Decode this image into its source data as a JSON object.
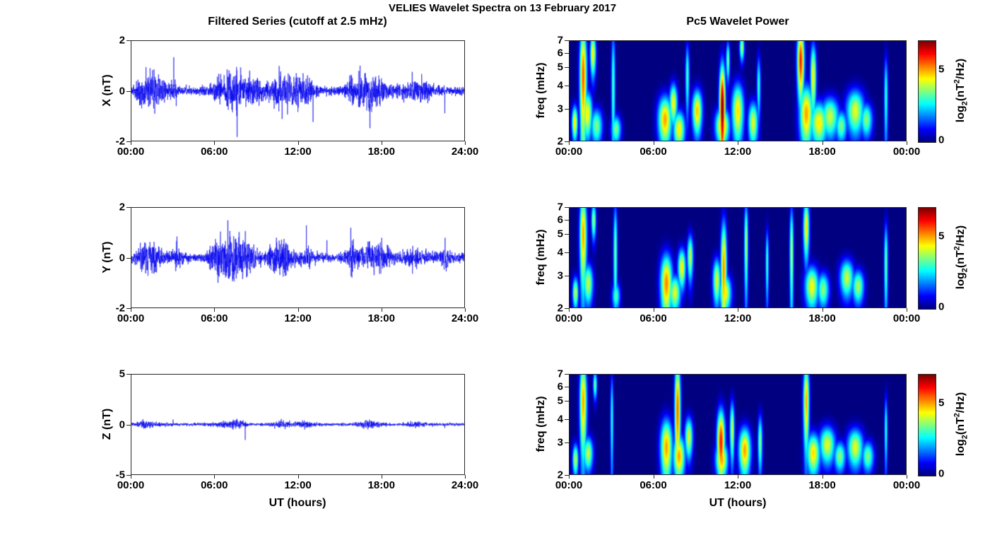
{
  "figure": {
    "title": "VELIES Wavelet Spectra on 13 February 2017",
    "left_title": "Filtered Series (cutoff at 2.5 mHz)",
    "right_title": "Pc5 Wavelet Power",
    "xlabel": "UT (hours)",
    "background_color": "#ffffff",
    "series_color": "#0000ee",
    "spectrogram_background_color": "#00008f"
  },
  "colorbar": {
    "label_pre": "log",
    "label_sub": "2",
    "label_mid": "(nT",
    "label_sup": "2",
    "label_post": "/Hz)",
    "ticks": [
      "0",
      "5"
    ],
    "range_log2": [
      0,
      7
    ]
  },
  "chart_data": [
    {
      "type": "line",
      "name": "X filtered series",
      "title": "Filtered Series (cutoff at 2.5 mHz)",
      "ylabel": "X (nT)",
      "ylim": [
        -2,
        2
      ],
      "yticks": [
        2,
        0,
        -2
      ],
      "x_hours": [
        0,
        24
      ],
      "xtick_labels": [
        "00:00",
        "06:00",
        "12:00",
        "18:00",
        "24:00"
      ],
      "baseline_noise_nT": 0.085,
      "bursts": [
        {
          "c": 0.8,
          "w": 0.4,
          "a": 0.18
        },
        {
          "c": 1.5,
          "w": 0.5,
          "a": 0.22
        },
        {
          "c": 2.2,
          "w": 0.3,
          "a": 0.12
        },
        {
          "c": 3.1,
          "w": 0.15,
          "a": 0.2
        },
        {
          "c": 6.7,
          "w": 0.6,
          "a": 0.2
        },
        {
          "c": 7.6,
          "w": 0.4,
          "a": 0.25
        },
        {
          "c": 8.4,
          "w": 0.3,
          "a": 0.12
        },
        {
          "c": 9.0,
          "w": 0.4,
          "a": 0.15
        },
        {
          "c": 10.8,
          "w": 0.6,
          "a": 0.28
        },
        {
          "c": 11.9,
          "w": 0.5,
          "a": 0.22
        },
        {
          "c": 13.0,
          "w": 0.3,
          "a": 0.2
        },
        {
          "c": 16.6,
          "w": 0.7,
          "a": 0.28
        },
        {
          "c": 17.8,
          "w": 0.5,
          "a": 0.15
        },
        {
          "c": 20.3,
          "w": 0.7,
          "a": 0.12
        },
        {
          "c": 21.2,
          "w": 0.4,
          "a": 0.1
        }
      ],
      "spikes": [
        {
          "t": 1.05,
          "v": 0.95
        },
        {
          "t": 1.6,
          "v": -0.7
        },
        {
          "t": 3.05,
          "v": 1.35
        },
        {
          "t": 7.62,
          "v": -1.85
        },
        {
          "t": 9.2,
          "v": -0.6
        },
        {
          "t": 10.65,
          "v": 1.0
        },
        {
          "t": 11.3,
          "v": 0.7
        },
        {
          "t": 12.0,
          "v": -0.85
        },
        {
          "t": 13.1,
          "v": -1.25
        },
        {
          "t": 16.4,
          "v": 0.8
        },
        {
          "t": 17.2,
          "v": -1.5
        },
        {
          "t": 22.6,
          "v": -0.9
        }
      ]
    },
    {
      "type": "heatmap",
      "name": "X wavelet power",
      "title": "Pc5 Wavelet Power",
      "ylabel": "freq (mHz)",
      "ylim_mHz": [
        2,
        7
      ],
      "yscale": "log",
      "yticks": [
        7,
        6,
        5,
        4,
        3,
        2
      ],
      "x_hours": [
        0,
        24
      ],
      "xtick_labels": [
        "00:00",
        "06:00",
        "12:00",
        "18:00",
        "00:00"
      ],
      "power_range_log2": [
        0,
        7
      ],
      "blobs": [
        {
          "t": 0.35,
          "f": 2.5,
          "st": 0.15,
          "sf": 0.4,
          "p": 4.5
        },
        {
          "t": 0.95,
          "f": 4.5,
          "st": 0.18,
          "sf": 2.5,
          "p": 5.5
        },
        {
          "t": 1.25,
          "f": 2.8,
          "st": 0.25,
          "sf": 0.6,
          "p": 4.5
        },
        {
          "t": 1.65,
          "f": 6.0,
          "st": 0.15,
          "sf": 1.2,
          "p": 4.5
        },
        {
          "t": 1.9,
          "f": 2.4,
          "st": 0.3,
          "sf": 0.4,
          "p": 3.5
        },
        {
          "t": 3.1,
          "f": 4.0,
          "st": 0.1,
          "sf": 2.5,
          "p": 3.2
        },
        {
          "t": 3.3,
          "f": 2.3,
          "st": 0.25,
          "sf": 0.3,
          "p": 3.5
        },
        {
          "t": 6.8,
          "f": 2.6,
          "st": 0.35,
          "sf": 0.6,
          "p": 5
        },
        {
          "t": 7.4,
          "f": 3.2,
          "st": 0.2,
          "sf": 0.6,
          "p": 4.5
        },
        {
          "t": 7.8,
          "f": 2.3,
          "st": 0.3,
          "sf": 0.4,
          "p": 4.5
        },
        {
          "t": 8.4,
          "f": 4.5,
          "st": 0.1,
          "sf": 1.5,
          "p": 3.2
        },
        {
          "t": 9.1,
          "f": 2.9,
          "st": 0.25,
          "sf": 0.6,
          "p": 4.8
        },
        {
          "t": 10.9,
          "f": 3.0,
          "st": 0.15,
          "sf": 1.5,
          "p": 7
        },
        {
          "t": 10.9,
          "f": 2.4,
          "st": 0.35,
          "sf": 0.4,
          "p": 5
        },
        {
          "t": 11.3,
          "f": 5.5,
          "st": 0.1,
          "sf": 1.0,
          "p": 3.5
        },
        {
          "t": 12.0,
          "f": 2.9,
          "st": 0.3,
          "sf": 0.8,
          "p": 4.6
        },
        {
          "t": 12.3,
          "f": 6.5,
          "st": 0.12,
          "sf": 0.8,
          "p": 3.8
        },
        {
          "t": 13.1,
          "f": 2.5,
          "st": 0.25,
          "sf": 0.5,
          "p": 4.2
        },
        {
          "t": 13.5,
          "f": 4.0,
          "st": 0.1,
          "sf": 1.2,
          "p": 3
        },
        {
          "t": 16.5,
          "f": 5.5,
          "st": 0.18,
          "sf": 1.8,
          "p": 6
        },
        {
          "t": 16.9,
          "f": 2.8,
          "st": 0.35,
          "sf": 0.8,
          "p": 5
        },
        {
          "t": 17.4,
          "f": 4.5,
          "st": 0.15,
          "sf": 1.5,
          "p": 4.5
        },
        {
          "t": 17.8,
          "f": 2.5,
          "st": 0.45,
          "sf": 0.5,
          "p": 4.5
        },
        {
          "t": 18.6,
          "f": 2.7,
          "st": 0.45,
          "sf": 0.5,
          "p": 4
        },
        {
          "t": 19.4,
          "f": 2.4,
          "st": 0.3,
          "sf": 0.35,
          "p": 3.5
        },
        {
          "t": 20.4,
          "f": 2.9,
          "st": 0.45,
          "sf": 0.6,
          "p": 4.2
        },
        {
          "t": 21.2,
          "f": 2.6,
          "st": 0.3,
          "sf": 0.4,
          "p": 3.6
        },
        {
          "t": 22.6,
          "f": 3.5,
          "st": 0.1,
          "sf": 1.5,
          "p": 3
        }
      ]
    },
    {
      "type": "line",
      "name": "Y filtered series",
      "ylabel": "Y (nT)",
      "ylim": [
        -2,
        2
      ],
      "yticks": [
        2,
        0,
        -2
      ],
      "x_hours": [
        0,
        24
      ],
      "xtick_labels": [
        "00:00",
        "06:00",
        "12:00",
        "18:00",
        "24:00"
      ],
      "baseline_noise_nT": 0.085,
      "bursts": [
        {
          "c": 0.9,
          "w": 0.4,
          "a": 0.15
        },
        {
          "c": 1.6,
          "w": 0.5,
          "a": 0.18
        },
        {
          "c": 3.3,
          "w": 0.2,
          "a": 0.15
        },
        {
          "c": 6.3,
          "w": 0.5,
          "a": 0.2
        },
        {
          "c": 7.0,
          "w": 0.6,
          "a": 0.3
        },
        {
          "c": 7.9,
          "w": 0.5,
          "a": 0.22
        },
        {
          "c": 8.6,
          "w": 0.4,
          "a": 0.15
        },
        {
          "c": 10.4,
          "w": 0.5,
          "a": 0.18
        },
        {
          "c": 11.1,
          "w": 0.4,
          "a": 0.2
        },
        {
          "c": 12.6,
          "w": 0.3,
          "a": 0.15
        },
        {
          "c": 15.8,
          "w": 0.3,
          "a": 0.15
        },
        {
          "c": 17.3,
          "w": 0.6,
          "a": 0.2
        },
        {
          "c": 18.2,
          "w": 0.4,
          "a": 0.12
        },
        {
          "c": 20.5,
          "w": 0.6,
          "a": 0.12
        },
        {
          "c": 22.6,
          "w": 0.3,
          "a": 0.12
        }
      ],
      "spikes": [
        {
          "t": 3.28,
          "v": 0.85
        },
        {
          "t": 6.15,
          "v": 0.6
        },
        {
          "t": 6.95,
          "v": 1.5
        },
        {
          "t": 7.4,
          "v": -0.95
        },
        {
          "t": 8.05,
          "v": 0.7
        },
        {
          "t": 10.45,
          "v": 0.8
        },
        {
          "t": 12.62,
          "v": 1.3
        },
        {
          "t": 14.1,
          "v": 0.7
        },
        {
          "t": 15.82,
          "v": 1.2
        },
        {
          "t": 15.9,
          "v": -0.8
        },
        {
          "t": 17.5,
          "v": -0.7
        },
        {
          "t": 22.62,
          "v": 0.8
        },
        {
          "t": 22.7,
          "v": -0.55
        }
      ]
    },
    {
      "type": "heatmap",
      "name": "Y wavelet power",
      "ylabel": "freq (mHz)",
      "ylim_mHz": [
        2,
        7
      ],
      "yscale": "log",
      "yticks": [
        7,
        6,
        5,
        4,
        3,
        2
      ],
      "x_hours": [
        0,
        24
      ],
      "xtick_labels": [
        "00:00",
        "06:00",
        "12:00",
        "18:00",
        "00:00"
      ],
      "power_range_log2": [
        0,
        7
      ],
      "blobs": [
        {
          "t": 0.4,
          "f": 2.4,
          "st": 0.15,
          "sf": 0.35,
          "p": 4
        },
        {
          "t": 0.95,
          "f": 5.0,
          "st": 0.18,
          "sf": 2.2,
          "p": 5
        },
        {
          "t": 1.3,
          "f": 2.7,
          "st": 0.25,
          "sf": 0.5,
          "p": 4
        },
        {
          "t": 1.7,
          "f": 6.0,
          "st": 0.12,
          "sf": 1.0,
          "p": 3.8
        },
        {
          "t": 3.25,
          "f": 4.0,
          "st": 0.1,
          "sf": 2.2,
          "p": 3.5
        },
        {
          "t": 3.3,
          "f": 2.3,
          "st": 0.2,
          "sf": 0.3,
          "p": 3.2
        },
        {
          "t": 6.9,
          "f": 2.7,
          "st": 0.3,
          "sf": 0.8,
          "p": 5.2
        },
        {
          "t": 7.5,
          "f": 2.4,
          "st": 0.3,
          "sf": 0.4,
          "p": 4.2
        },
        {
          "t": 8.0,
          "f": 3.3,
          "st": 0.2,
          "sf": 0.6,
          "p": 4.5
        },
        {
          "t": 8.6,
          "f": 3.8,
          "st": 0.15,
          "sf": 0.8,
          "p": 4
        },
        {
          "t": 10.5,
          "f": 2.8,
          "st": 0.2,
          "sf": 0.6,
          "p": 4.2
        },
        {
          "t": 11.0,
          "f": 3.2,
          "st": 0.15,
          "sf": 1.8,
          "p": 5.2
        },
        {
          "t": 11.1,
          "f": 2.4,
          "st": 0.3,
          "sf": 0.4,
          "p": 4.5
        },
        {
          "t": 12.6,
          "f": 4.5,
          "st": 0.1,
          "sf": 2.0,
          "p": 3.8
        },
        {
          "t": 14.1,
          "f": 3.5,
          "st": 0.08,
          "sf": 1.2,
          "p": 3.2
        },
        {
          "t": 15.85,
          "f": 4.0,
          "st": 0.1,
          "sf": 2.0,
          "p": 4
        },
        {
          "t": 16.9,
          "f": 5.5,
          "st": 0.15,
          "sf": 1.5,
          "p": 4.6
        },
        {
          "t": 17.3,
          "f": 2.6,
          "st": 0.35,
          "sf": 0.5,
          "p": 4.4
        },
        {
          "t": 18.1,
          "f": 2.5,
          "st": 0.3,
          "sf": 0.4,
          "p": 3.6
        },
        {
          "t": 19.8,
          "f": 2.9,
          "st": 0.35,
          "sf": 0.5,
          "p": 4
        },
        {
          "t": 20.6,
          "f": 2.6,
          "st": 0.3,
          "sf": 0.4,
          "p": 3.8
        },
        {
          "t": 22.6,
          "f": 3.5,
          "st": 0.1,
          "sf": 1.5,
          "p": 3.4
        }
      ]
    },
    {
      "type": "line",
      "name": "Z filtered series",
      "ylabel": "Z (nT)",
      "ylim": [
        -5,
        5
      ],
      "yticks": [
        5,
        0,
        -5
      ],
      "x_hours": [
        0,
        24
      ],
      "xtick_labels": [
        "00:00",
        "06:00",
        "12:00",
        "18:00",
        "24:00"
      ],
      "baseline_noise_nT": 0.07,
      "bursts": [
        {
          "c": 0.9,
          "w": 0.4,
          "a": 0.1
        },
        {
          "c": 1.6,
          "w": 0.4,
          "a": 0.08
        },
        {
          "c": 6.9,
          "w": 0.6,
          "a": 0.12
        },
        {
          "c": 7.8,
          "w": 0.4,
          "a": 0.12
        },
        {
          "c": 10.8,
          "w": 0.5,
          "a": 0.12
        },
        {
          "c": 12.5,
          "w": 0.4,
          "a": 0.1
        },
        {
          "c": 16.9,
          "w": 0.5,
          "a": 0.1
        },
        {
          "c": 17.6,
          "w": 0.4,
          "a": 0.08
        },
        {
          "c": 20.4,
          "w": 0.5,
          "a": 0.07
        }
      ],
      "spikes": [
        {
          "t": 3.0,
          "v": 0.5
        },
        {
          "t": 8.2,
          "v": -1.55
        },
        {
          "t": 10.8,
          "v": 0.55
        },
        {
          "t": 11.4,
          "v": 0.4
        },
        {
          "t": 12.5,
          "v": -0.5
        },
        {
          "t": 16.9,
          "v": 0.45
        },
        {
          "t": 22.6,
          "v": -0.35
        }
      ]
    },
    {
      "type": "heatmap",
      "name": "Z wavelet power",
      "ylabel": "freq (mHz)",
      "ylim_mHz": [
        2,
        7
      ],
      "yscale": "log",
      "yticks": [
        7,
        6,
        5,
        4,
        3,
        2
      ],
      "x_hours": [
        0,
        24
      ],
      "xtick_labels": [
        "00:00",
        "06:00",
        "12:00",
        "18:00",
        "00:00"
      ],
      "power_range_log2": [
        0,
        7
      ],
      "blobs": [
        {
          "t": 0.4,
          "f": 2.4,
          "st": 0.15,
          "sf": 0.35,
          "p": 4
        },
        {
          "t": 0.95,
          "f": 5.0,
          "st": 0.18,
          "sf": 2.2,
          "p": 5
        },
        {
          "t": 1.3,
          "f": 2.6,
          "st": 0.25,
          "sf": 0.4,
          "p": 4
        },
        {
          "t": 1.8,
          "f": 6.2,
          "st": 0.1,
          "sf": 0.8,
          "p": 3.5
        },
        {
          "t": 3.0,
          "f": 4.0,
          "st": 0.08,
          "sf": 2.0,
          "p": 3
        },
        {
          "t": 6.9,
          "f": 2.8,
          "st": 0.3,
          "sf": 0.8,
          "p": 5
        },
        {
          "t": 7.7,
          "f": 4.5,
          "st": 0.15,
          "sf": 2.5,
          "p": 5.5
        },
        {
          "t": 7.8,
          "f": 2.5,
          "st": 0.3,
          "sf": 0.5,
          "p": 5
        },
        {
          "t": 8.5,
          "f": 3.2,
          "st": 0.2,
          "sf": 0.6,
          "p": 4.2
        },
        {
          "t": 10.8,
          "f": 3.0,
          "st": 0.2,
          "sf": 1.0,
          "p": 6
        },
        {
          "t": 10.85,
          "f": 2.4,
          "st": 0.3,
          "sf": 0.4,
          "p": 5
        },
        {
          "t": 11.6,
          "f": 3.5,
          "st": 0.12,
          "sf": 1.0,
          "p": 4
        },
        {
          "t": 12.5,
          "f": 2.7,
          "st": 0.3,
          "sf": 0.6,
          "p": 5
        },
        {
          "t": 13.6,
          "f": 3.0,
          "st": 0.12,
          "sf": 0.8,
          "p": 3.5
        },
        {
          "t": 16.9,
          "f": 5.0,
          "st": 0.15,
          "sf": 2.0,
          "p": 5
        },
        {
          "t": 17.4,
          "f": 2.6,
          "st": 0.35,
          "sf": 0.5,
          "p": 4.6
        },
        {
          "t": 18.4,
          "f": 2.9,
          "st": 0.4,
          "sf": 0.5,
          "p": 4.2
        },
        {
          "t": 19.3,
          "f": 2.5,
          "st": 0.3,
          "sf": 0.35,
          "p": 3.6
        },
        {
          "t": 20.4,
          "f": 2.8,
          "st": 0.4,
          "sf": 0.5,
          "p": 4.2
        },
        {
          "t": 21.3,
          "f": 2.5,
          "st": 0.3,
          "sf": 0.35,
          "p": 3.5
        },
        {
          "t": 22.6,
          "f": 3.5,
          "st": 0.08,
          "sf": 1.2,
          "p": 3
        }
      ]
    }
  ]
}
